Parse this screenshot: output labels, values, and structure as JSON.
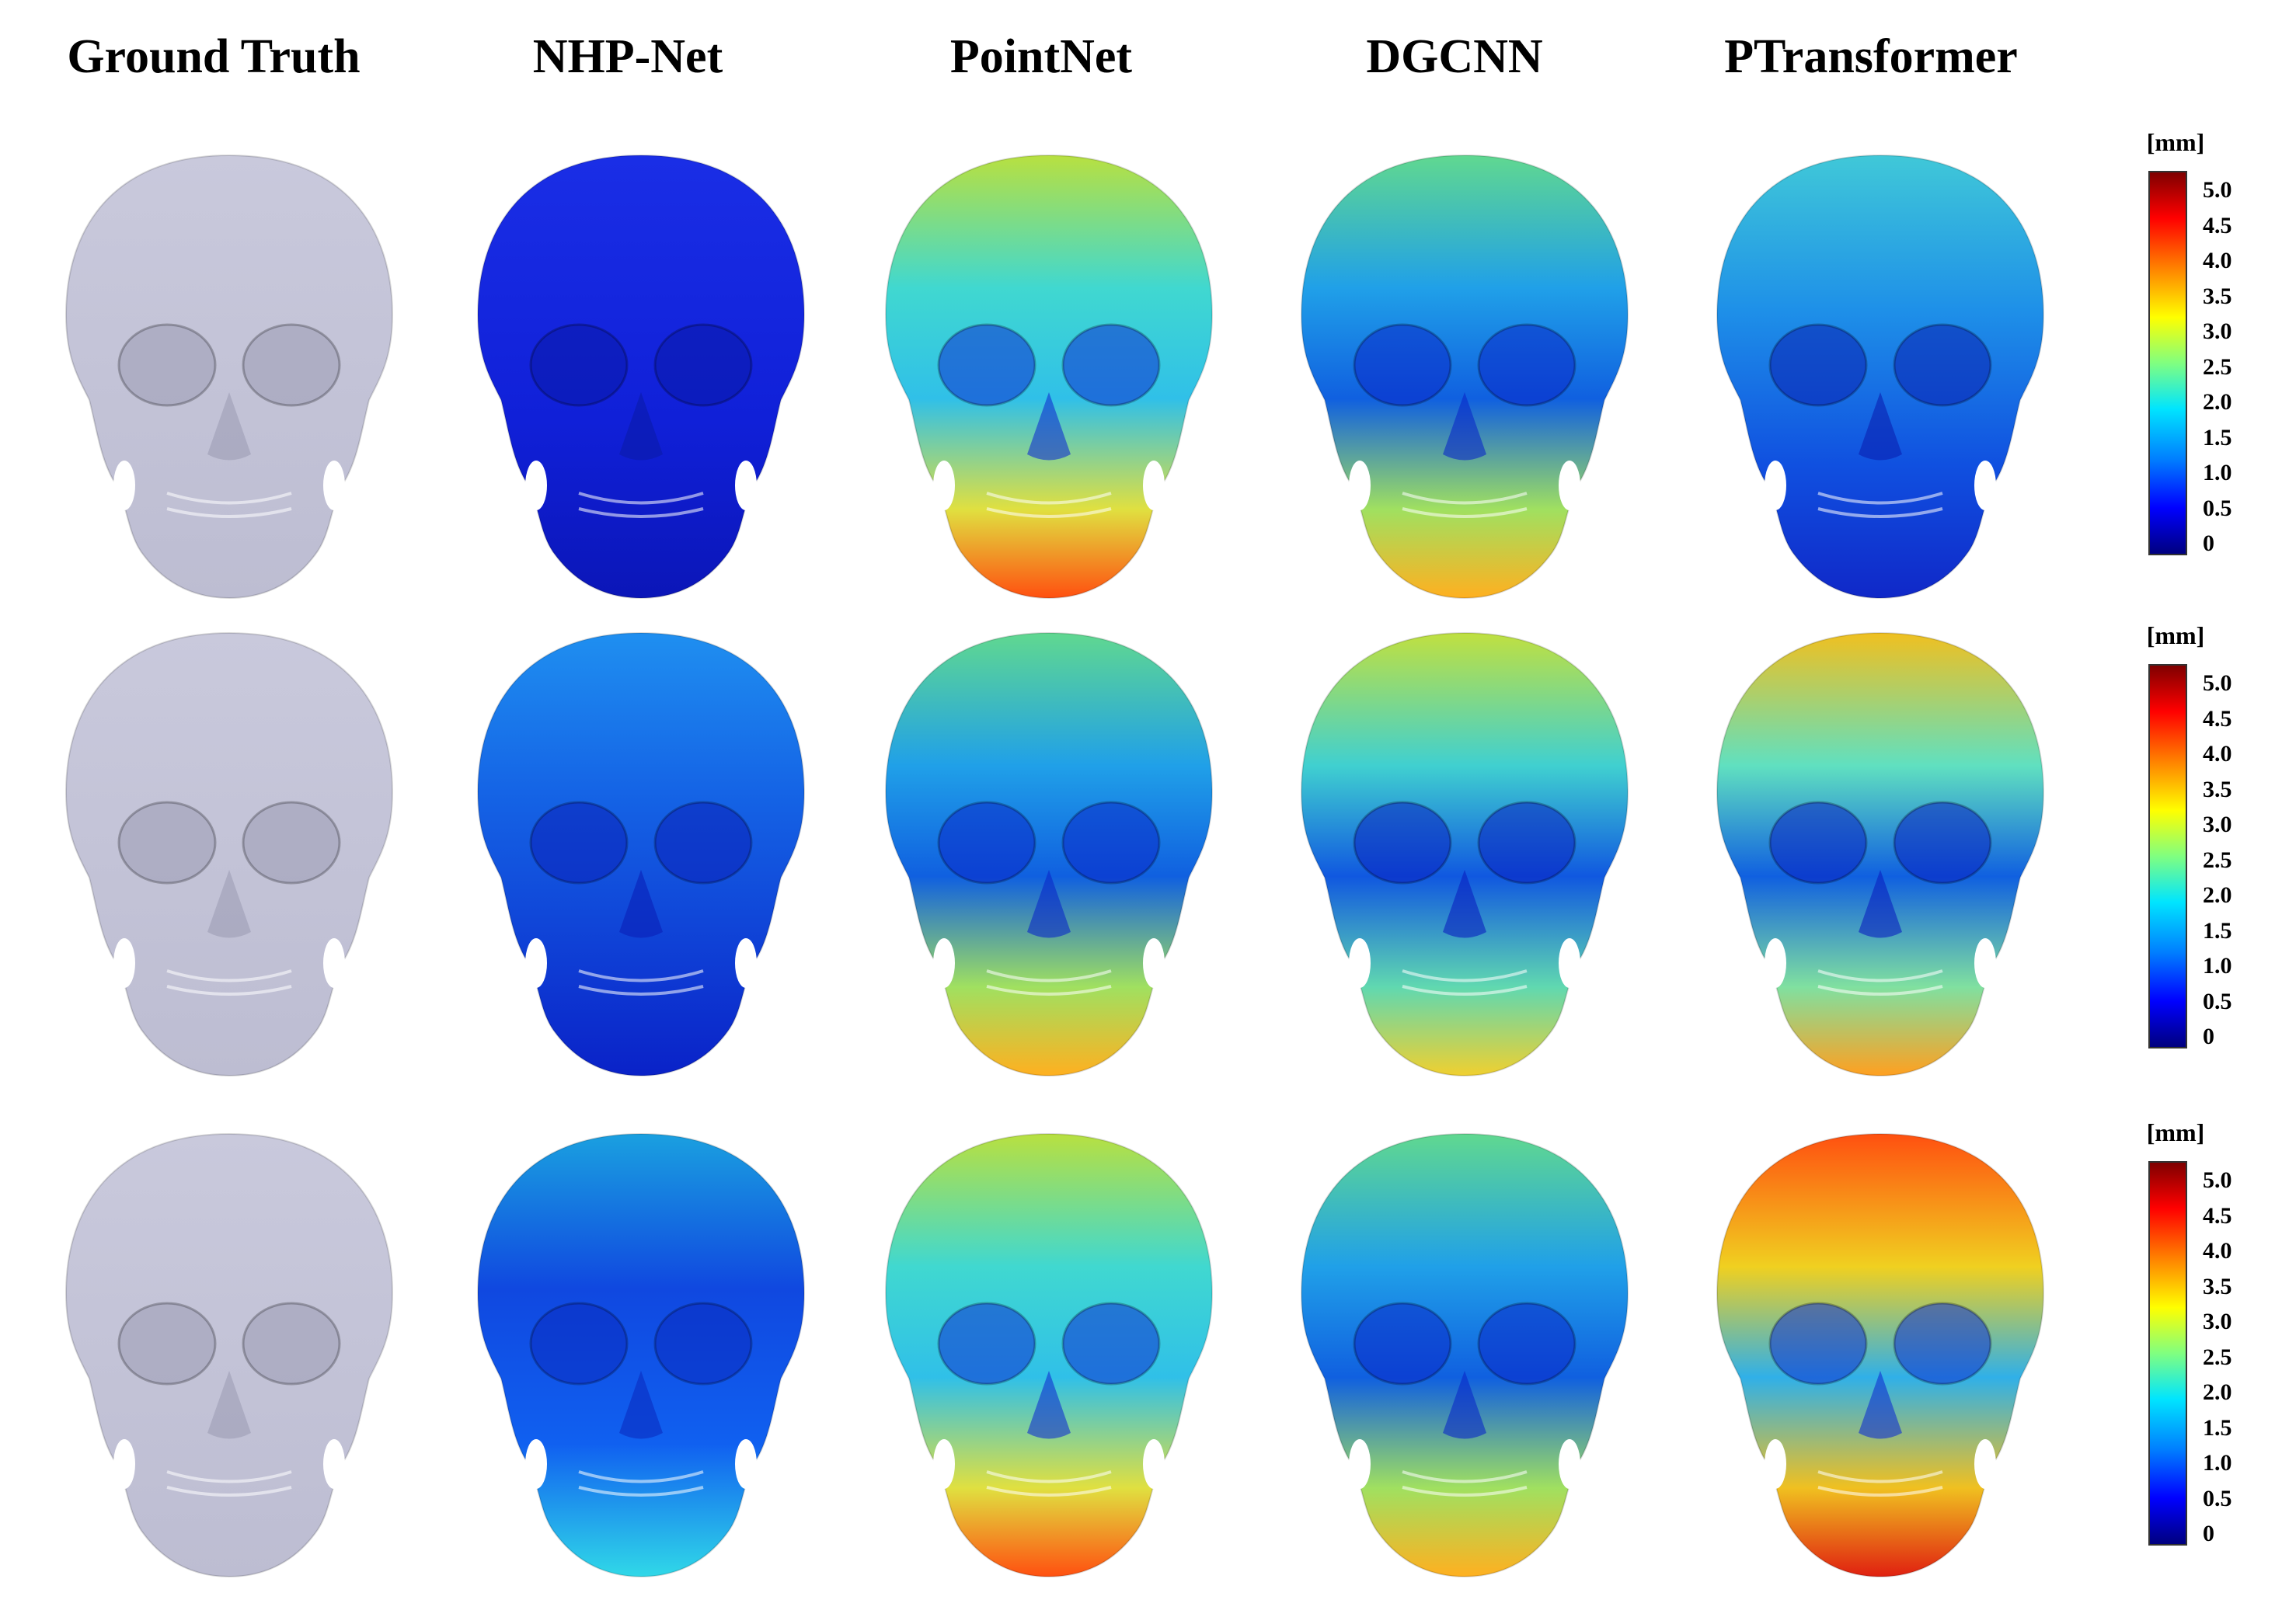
{
  "columns": [
    {
      "title": "Ground Truth"
    },
    {
      "title": "NHP-Net"
    },
    {
      "title": "PointNet"
    },
    {
      "title": "DGCNN"
    },
    {
      "title": "PTransformer"
    }
  ],
  "colorbar": {
    "unit": "[mm]",
    "ticks": [
      "5.0",
      "4.5",
      "4.0",
      "3.5",
      "3.0",
      "2.5",
      "2.0",
      "1.5",
      "1.0",
      "0.5",
      "0"
    ],
    "colors": [
      "#00007f",
      "#0000ff",
      "#0080ff",
      "#00e5ff",
      "#80ff80",
      "#ffff00",
      "#ff8000",
      "#ff0000",
      "#7f0000"
    ]
  },
  "skull_base_color": "#c8c8dc",
  "rows": [
    {
      "cells": [
        "gray",
        "blue_dark",
        "jet_high_jaw",
        "jet_mid_jaw",
        "jet_low"
      ]
    },
    {
      "cells": [
        "gray",
        "blue_mid",
        "jet_mid_jaw",
        "jet_mid",
        "jet_top_warm"
      ]
    },
    {
      "cells": [
        "gray",
        "blue_cyan_jaw",
        "jet_high_jaw",
        "jet_mid_jaw",
        "jet_very_high"
      ]
    }
  ]
}
